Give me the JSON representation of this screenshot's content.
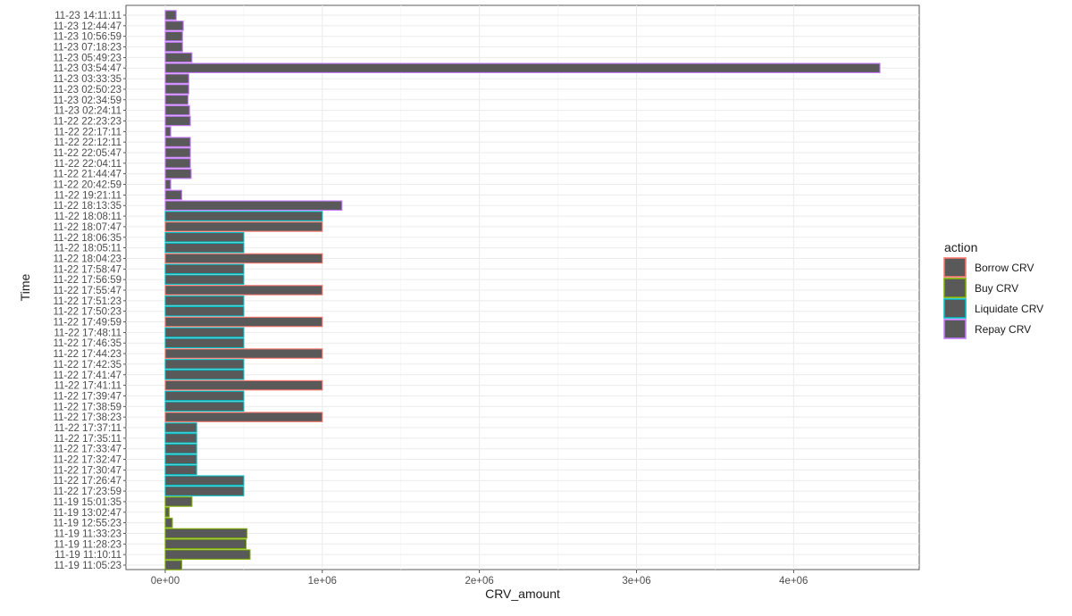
{
  "chart_data": {
    "type": "bar",
    "orientation": "horizontal",
    "xlabel": "CRV_amount",
    "ylabel": "Time",
    "xlim": [
      -250000,
      4800000
    ],
    "x_ticks": [
      {
        "value": 0,
        "label": "0e+00"
      },
      {
        "value": 1000000,
        "label": "1e+06"
      },
      {
        "value": 2000000,
        "label": "2e+06"
      },
      {
        "value": 3000000,
        "label": "3e+06"
      },
      {
        "value": 4000000,
        "label": "4e+06"
      }
    ],
    "grid": true,
    "bar_fill": "#595959",
    "legend": {
      "title": "action",
      "position": "right",
      "items": [
        {
          "key": "borrow",
          "label": "Borrow CRV",
          "color": "#F8766D"
        },
        {
          "key": "buy",
          "label": "Buy CRV",
          "color": "#7CAE00"
        },
        {
          "key": "liquidate",
          "label": "Liquidate CRV",
          "color": "#00BFC4"
        },
        {
          "key": "repay",
          "label": "Repay CRV",
          "color": "#C77CFF"
        }
      ]
    },
    "bars": [
      {
        "time": "11-23 14:11:11",
        "value": 70000,
        "action": "repay"
      },
      {
        "time": "11-23 12:44:47",
        "value": 115000,
        "action": "repay"
      },
      {
        "time": "11-23 10:56:59",
        "value": 110000,
        "action": "repay"
      },
      {
        "time": "11-23 07:18:23",
        "value": 110000,
        "action": "repay"
      },
      {
        "time": "11-23 05:49:23",
        "value": 170000,
        "action": "repay"
      },
      {
        "time": "11-23 03:54:47",
        "value": 4550000,
        "action": "repay"
      },
      {
        "time": "11-23 03:33:35",
        "value": 150000,
        "action": "repay"
      },
      {
        "time": "11-23 02:50:23",
        "value": 150000,
        "action": "repay"
      },
      {
        "time": "11-23 02:34:59",
        "value": 145000,
        "action": "repay"
      },
      {
        "time": "11-23 02:24:11",
        "value": 155000,
        "action": "repay"
      },
      {
        "time": "11-22 22:23:23",
        "value": 160000,
        "action": "repay"
      },
      {
        "time": "11-22 22:17:11",
        "value": 35000,
        "action": "repay"
      },
      {
        "time": "11-22 22:12:11",
        "value": 160000,
        "action": "repay"
      },
      {
        "time": "11-22 22:05:47",
        "value": 160000,
        "action": "repay"
      },
      {
        "time": "11-22 22:04:11",
        "value": 160000,
        "action": "repay"
      },
      {
        "time": "11-22 21:44:47",
        "value": 165000,
        "action": "repay"
      },
      {
        "time": "11-22 20:42:59",
        "value": 35000,
        "action": "repay"
      },
      {
        "time": "11-22 19:21:11",
        "value": 105000,
        "action": "repay"
      },
      {
        "time": "11-22 18:13:35",
        "value": 1125000,
        "action": "repay"
      },
      {
        "time": "11-22 18:08:11",
        "value": 1000000,
        "action": "liquidate"
      },
      {
        "time": "11-22 18:07:47",
        "value": 1000000,
        "action": "borrow"
      },
      {
        "time": "11-22 18:06:35",
        "value": 500000,
        "action": "liquidate"
      },
      {
        "time": "11-22 18:05:11",
        "value": 500000,
        "action": "liquidate"
      },
      {
        "time": "11-22 18:04:23",
        "value": 1000000,
        "action": "borrow"
      },
      {
        "time": "11-22 17:58:47",
        "value": 500000,
        "action": "liquidate"
      },
      {
        "time": "11-22 17:56:59",
        "value": 500000,
        "action": "liquidate"
      },
      {
        "time": "11-22 17:55:47",
        "value": 1000000,
        "action": "borrow"
      },
      {
        "time": "11-22 17:51:23",
        "value": 500000,
        "action": "liquidate"
      },
      {
        "time": "11-22 17:50:23",
        "value": 500000,
        "action": "liquidate"
      },
      {
        "time": "11-22 17:49:59",
        "value": 1000000,
        "action": "borrow"
      },
      {
        "time": "11-22 17:48:11",
        "value": 500000,
        "action": "liquidate"
      },
      {
        "time": "11-22 17:46:35",
        "value": 500000,
        "action": "liquidate"
      },
      {
        "time": "11-22 17:44:23",
        "value": 1000000,
        "action": "borrow"
      },
      {
        "time": "11-22 17:42:35",
        "value": 500000,
        "action": "liquidate"
      },
      {
        "time": "11-22 17:41:47",
        "value": 500000,
        "action": "liquidate"
      },
      {
        "time": "11-22 17:41:11",
        "value": 1000000,
        "action": "borrow"
      },
      {
        "time": "11-22 17:39:47",
        "value": 500000,
        "action": "liquidate"
      },
      {
        "time": "11-22 17:38:59",
        "value": 500000,
        "action": "liquidate"
      },
      {
        "time": "11-22 17:38:23",
        "value": 1000000,
        "action": "borrow"
      },
      {
        "time": "11-22 17:37:11",
        "value": 200000,
        "action": "liquidate"
      },
      {
        "time": "11-22 17:35:11",
        "value": 200000,
        "action": "liquidate"
      },
      {
        "time": "11-22 17:33:47",
        "value": 200000,
        "action": "liquidate"
      },
      {
        "time": "11-22 17:32:47",
        "value": 200000,
        "action": "liquidate"
      },
      {
        "time": "11-22 17:30:47",
        "value": 200000,
        "action": "liquidate"
      },
      {
        "time": "11-22 17:26:47",
        "value": 500000,
        "action": "liquidate"
      },
      {
        "time": "11-22 17:23:59",
        "value": 500000,
        "action": "liquidate"
      },
      {
        "time": "11-19 15:01:35",
        "value": 170000,
        "action": "buy"
      },
      {
        "time": "11-19 13:02:47",
        "value": 25000,
        "action": "buy"
      },
      {
        "time": "11-19 12:55:23",
        "value": 45000,
        "action": "buy"
      },
      {
        "time": "11-19 11:33:23",
        "value": 520000,
        "action": "buy"
      },
      {
        "time": "11-19 11:28:23",
        "value": 515000,
        "action": "buy"
      },
      {
        "time": "11-19 11:10:11",
        "value": 540000,
        "action": "buy"
      },
      {
        "time": "11-19 11:05:23",
        "value": 105000,
        "action": "buy"
      }
    ]
  }
}
